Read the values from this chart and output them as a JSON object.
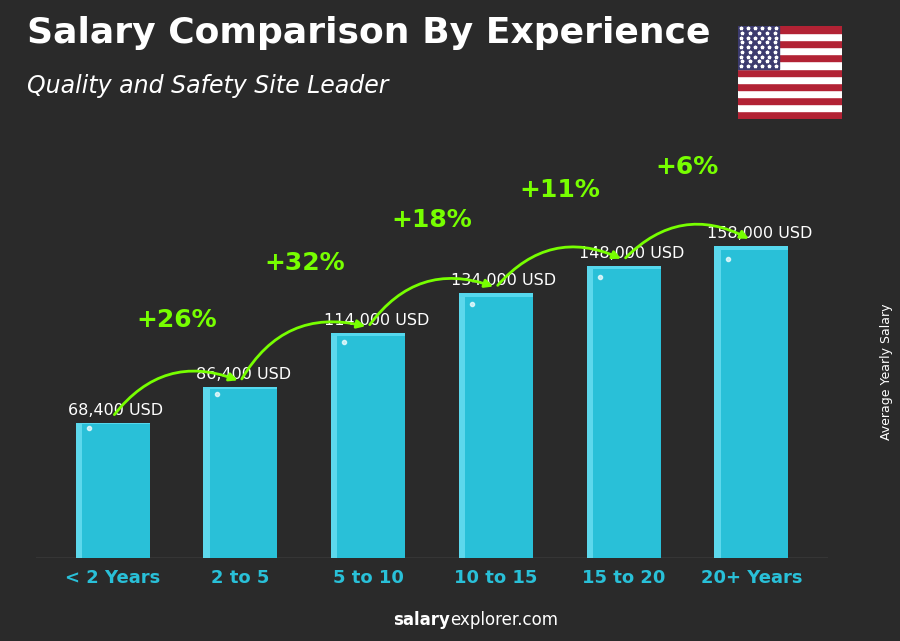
{
  "title": "Salary Comparison By Experience",
  "subtitle": "Quality and Safety Site Leader",
  "categories": [
    "< 2 Years",
    "2 to 5",
    "5 to 10",
    "10 to 15",
    "15 to 20",
    "20+ Years"
  ],
  "values": [
    68400,
    86400,
    114000,
    134000,
    148000,
    158000
  ],
  "value_labels": [
    "68,400 USD",
    "86,400 USD",
    "114,000 USD",
    "134,000 USD",
    "148,000 USD",
    "158,000 USD"
  ],
  "pct_labels": [
    "+26%",
    "+32%",
    "+18%",
    "+11%",
    "+6%"
  ],
  "bar_color_main": "#29C0D8",
  "bar_color_left": "#5DD8EC",
  "bar_color_top": "#55D8EE",
  "pct_color": "#77FF00",
  "title_color": "#FFFFFF",
  "value_label_color": "#FFFFFF",
  "xlabel_color": "#29C0D8",
  "ylabel_text": "Average Yearly Salary",
  "ylabel_color": "#FFFFFF",
  "website_text_plain": "explorer.com",
  "website_text_bold": "salary",
  "background_color": "#2a2a2a",
  "ylim": [
    0,
    195000
  ],
  "title_fontsize": 26,
  "subtitle_fontsize": 17,
  "value_fontsize": 11.5,
  "pct_fontsize": 18,
  "xtick_fontsize": 13,
  "bar_width": 0.58
}
